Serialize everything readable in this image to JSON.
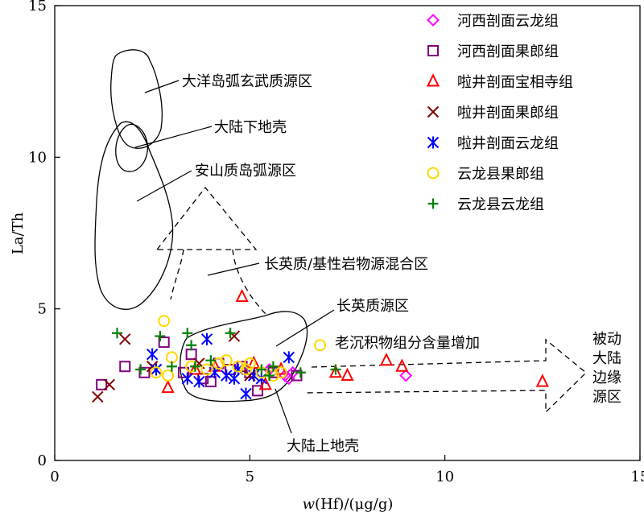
{
  "chart_data": {
    "type": "scatter",
    "title": "",
    "xlabel_italic": "w",
    "xlabel": "(Hf)/(μg/g)",
    "ylabel": "La/Th",
    "xlim": [
      0,
      15
    ],
    "ylim": [
      0,
      15
    ],
    "x_ticks": [
      0,
      5,
      10,
      15
    ],
    "y_ticks": [
      0,
      5,
      10,
      15
    ],
    "x_tick_labels": [
      "0",
      "5",
      "10",
      "15"
    ],
    "y_tick_labels": [
      "0",
      "5",
      "10",
      "15"
    ],
    "legend_position": "top-right",
    "series": [
      {
        "name": "河西剖面云龙组",
        "marker": "diamond",
        "color": "#ff00ff",
        "points": [
          [
            5.9,
            2.8
          ],
          [
            6.0,
            2.7
          ],
          [
            6.1,
            2.9
          ],
          [
            9.0,
            2.8
          ],
          [
            5.5,
            3.0
          ]
        ]
      },
      {
        "name": "河西剖面果郎组",
        "marker": "square",
        "color": "#800080",
        "points": [
          [
            1.2,
            2.5
          ],
          [
            1.8,
            3.1
          ],
          [
            2.3,
            2.9
          ],
          [
            2.8,
            3.9
          ],
          [
            3.3,
            2.9
          ],
          [
            3.5,
            3.5
          ],
          [
            3.8,
            2.7
          ],
          [
            4.0,
            2.6
          ],
          [
            4.2,
            3.2
          ],
          [
            4.5,
            3.0
          ],
          [
            4.8,
            3.1
          ],
          [
            5.0,
            2.9
          ],
          [
            5.2,
            2.3
          ],
          [
            5.6,
            2.9
          ],
          [
            6.2,
            2.8
          ]
        ]
      },
      {
        "name": "啦井剖面宝相寺组",
        "marker": "triangle",
        "color": "#ff0000",
        "points": [
          [
            2.9,
            2.4
          ],
          [
            3.6,
            3.0
          ],
          [
            4.1,
            3.1
          ],
          [
            4.8,
            5.4
          ],
          [
            5.1,
            3.2
          ],
          [
            5.4,
            2.5
          ],
          [
            5.8,
            3.0
          ],
          [
            7.2,
            2.9
          ],
          [
            7.5,
            2.8
          ],
          [
            8.5,
            3.3
          ],
          [
            8.9,
            3.1
          ],
          [
            12.5,
            2.6
          ]
        ]
      },
      {
        "name": "啦井剖面果郎组",
        "marker": "x",
        "color": "#800000",
        "points": [
          [
            1.1,
            2.1
          ],
          [
            1.4,
            2.5
          ],
          [
            1.8,
            4.0
          ],
          [
            2.5,
            3.1
          ],
          [
            3.7,
            3.2
          ],
          [
            4.6,
            4.1
          ],
          [
            5.0,
            2.8
          ]
        ]
      },
      {
        "name": "啦井剖面云龙组",
        "marker": "asterisk",
        "color": "#0000ff",
        "points": [
          [
            2.5,
            3.5
          ],
          [
            2.6,
            3.0
          ],
          [
            3.4,
            2.7
          ],
          [
            3.7,
            2.6
          ],
          [
            3.9,
            4.0
          ],
          [
            4.1,
            2.9
          ],
          [
            4.4,
            2.8
          ],
          [
            4.7,
            3.0
          ],
          [
            4.9,
            2.2
          ],
          [
            5.1,
            2.8
          ],
          [
            5.3,
            2.7
          ],
          [
            6.0,
            3.4
          ],
          [
            4.6,
            2.7
          ]
        ]
      },
      {
        "name": "云龙县果郎组",
        "marker": "circle",
        "color": "#ffd700",
        "points": [
          [
            2.8,
            4.6
          ],
          [
            3.0,
            3.4
          ],
          [
            2.6,
            2.9
          ],
          [
            3.5,
            3.1
          ],
          [
            4.4,
            3.3
          ],
          [
            4.7,
            3.1
          ],
          [
            4.9,
            3.0
          ],
          [
            5.0,
            3.2
          ],
          [
            5.3,
            2.9
          ],
          [
            5.6,
            2.8
          ],
          [
            5.8,
            2.9
          ],
          [
            6.8,
            3.8
          ],
          [
            3.9,
            3.0
          ],
          [
            4.2,
            3.2
          ],
          [
            2.9,
            2.8
          ]
        ]
      },
      {
        "name": "云龙县云龙组",
        "marker": "plus",
        "color": "#008000",
        "points": [
          [
            1.6,
            4.2
          ],
          [
            2.2,
            3.0
          ],
          [
            2.7,
            4.1
          ],
          [
            3.0,
            3.1
          ],
          [
            3.4,
            4.2
          ],
          [
            3.5,
            3.8
          ],
          [
            3.6,
            3.1
          ],
          [
            4.0,
            3.3
          ],
          [
            4.5,
            4.2
          ],
          [
            5.3,
            3.0
          ],
          [
            5.5,
            2.8
          ],
          [
            5.6,
            3.1
          ],
          [
            6.3,
            2.9
          ],
          [
            7.2,
            3.0
          ]
        ]
      }
    ],
    "annotations": {
      "ocean_island_arc": "大洋岛弧玄武质源区",
      "lower_crust": "大陆下地壳",
      "andesitic_arc": "安山质岛弧源区",
      "mixed_source": "长英质/基性岩物源混合区",
      "felsic_source": "长英质源区",
      "sediment_increase": "老沉积物组分含量增加",
      "passive_margin": [
        "被动",
        "大陆",
        "边缘",
        "源区"
      ],
      "upper_crust": "大陆上地壳"
    }
  }
}
